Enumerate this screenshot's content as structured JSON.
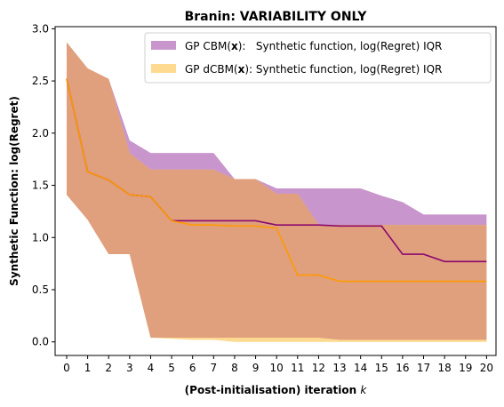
{
  "chart_data": {
    "type": "area",
    "title": "Branin: VARIABILITY ONLY",
    "xlabel": "(Post-initialisation) iteration",
    "xlabel_var": "k",
    "ylabel": "Synthetic Function: log(Regret)",
    "xlim": [
      -0.55,
      20.45
    ],
    "ylim": [
      -0.13,
      3.02
    ],
    "x_ticks": [
      0,
      1,
      2,
      3,
      4,
      5,
      6,
      7,
      8,
      9,
      10,
      11,
      12,
      13,
      14,
      15,
      16,
      17,
      18,
      19,
      20
    ],
    "y_ticks": [
      "0.0",
      "0.5",
      "1.0",
      "1.5",
      "2.0",
      "2.5",
      "3.0"
    ],
    "y_tick_values": [
      0,
      0.5,
      1.0,
      1.5,
      2.0,
      2.5,
      3.0
    ],
    "legend_position": "top-right",
    "x": [
      0,
      1,
      2,
      3,
      4,
      5,
      6,
      7,
      8,
      9,
      10,
      11,
      12,
      13,
      14,
      15,
      16,
      17,
      18,
      19,
      20
    ],
    "series": [
      {
        "name": "GP CBM(x): Synthetic function, log(Regret) IQR",
        "legend_prefix": "GP CBM(",
        "legend_bold": "x",
        "legend_suffix": "):   Synthetic function, log(Regret) IQR",
        "band_color": "#c896cc",
        "line_color": "#8b0a6e",
        "median": [
          2.52,
          1.63,
          1.55,
          1.41,
          1.39,
          1.16,
          1.16,
          1.16,
          1.16,
          1.16,
          1.12,
          1.12,
          1.12,
          1.11,
          1.11,
          1.11,
          0.84,
          0.84,
          0.77,
          0.77,
          0.77
        ],
        "upper": [
          2.87,
          2.62,
          2.52,
          1.93,
          1.81,
          1.81,
          1.81,
          1.81,
          1.56,
          1.56,
          1.47,
          1.47,
          1.47,
          1.47,
          1.47,
          1.4,
          1.34,
          1.22,
          1.22,
          1.22,
          1.22
        ],
        "lower": [
          1.41,
          1.17,
          0.84,
          0.84,
          0.04,
          0.04,
          0.04,
          0.04,
          0.04,
          0.04,
          0.04,
          0.04,
          0.04,
          0.02,
          0.02,
          0.02,
          0.02,
          0.02,
          0.02,
          0.02,
          0.02
        ]
      },
      {
        "name": "GP dCBM(x): Synthetic function, log(Regret) IQR",
        "legend_prefix": "GP dCBM(",
        "legend_bold": "x",
        "legend_suffix": "): Synthetic function, log(Regret) IQR",
        "band_color": "#fed990",
        "line_color": "#ff9a00",
        "median": [
          2.52,
          1.63,
          1.55,
          1.41,
          1.39,
          1.16,
          1.12,
          1.12,
          1.11,
          1.11,
          1.09,
          0.64,
          0.64,
          0.58,
          0.58,
          0.58,
          0.58,
          0.58,
          0.58,
          0.58,
          0.58
        ],
        "upper": [
          2.87,
          2.62,
          2.52,
          1.81,
          1.65,
          1.65,
          1.65,
          1.65,
          1.56,
          1.56,
          1.42,
          1.42,
          1.12,
          1.12,
          1.12,
          1.12,
          1.12,
          1.12,
          1.12,
          1.12,
          1.12
        ],
        "lower": [
          1.41,
          1.17,
          0.84,
          0.84,
          0.04,
          0.03,
          0.02,
          0.02,
          0.0,
          0.0,
          0.0,
          0.0,
          0.0,
          0.0,
          0.0,
          0.0,
          0.0,
          0.0,
          0.0,
          0.0,
          0.0
        ]
      }
    ],
    "overlap_color": "#e09f7d"
  }
}
